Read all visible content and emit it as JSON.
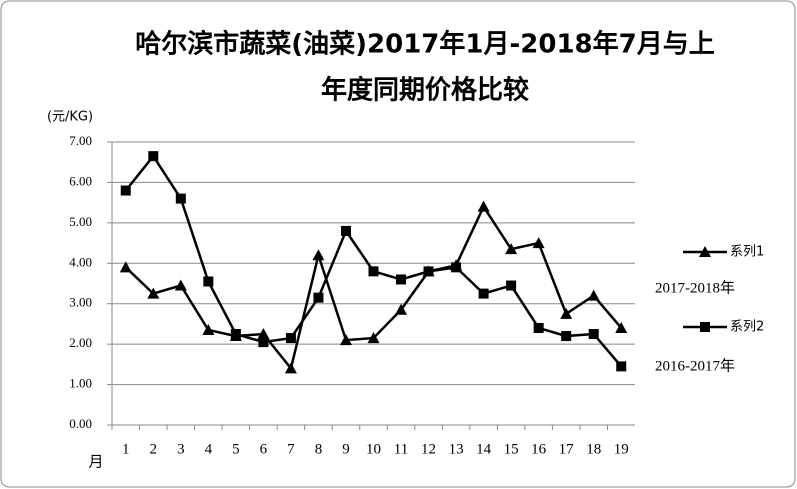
{
  "chart_data": {
    "type": "line",
    "title": [
      "哈尔滨市蔬菜(油菜)2017年1月-2018年7月与上",
      "年度同期价格比较"
    ],
    "y_label": "(元/KG)",
    "x_label": "月",
    "categories": [
      "1",
      "2",
      "3",
      "4",
      "5",
      "6",
      "7",
      "8",
      "9",
      "10",
      "11",
      "12",
      "13",
      "14",
      "15",
      "16",
      "17",
      "18",
      "19"
    ],
    "series": [
      {
        "name": "系列1",
        "color": "#000000",
        "marker": "triangle",
        "values": [
          3.9,
          3.25,
          3.45,
          2.35,
          2.2,
          2.25,
          1.4,
          4.2,
          2.1,
          2.15,
          2.85,
          3.8,
          3.95,
          5.4,
          4.35,
          4.5,
          2.75,
          3.2,
          2.4
        ]
      },
      {
        "name": "系列2",
        "color": "#000000",
        "marker": "square",
        "values": [
          5.8,
          6.65,
          5.6,
          3.55,
          2.25,
          2.05,
          2.15,
          3.15,
          4.8,
          3.8,
          3.6,
          3.8,
          3.9,
          3.25,
          3.45,
          2.4,
          2.2,
          2.25,
          1.45
        ]
      }
    ],
    "annotations": [
      "2017-2018年",
      "2016-2017年"
    ],
    "ylim": [
      0,
      7
    ],
    "yticks": [
      {
        "value": 0,
        "label": "0.00"
      },
      {
        "value": 1,
        "label": "1.00"
      },
      {
        "value": 2,
        "label": "2.00"
      },
      {
        "value": 3,
        "label": "3.00"
      },
      {
        "value": 4,
        "label": "4.00"
      },
      {
        "value": 5,
        "label": "5.00"
      },
      {
        "value": 6,
        "label": "6.00"
      },
      {
        "value": 7,
        "label": "7.00"
      }
    ],
    "grid": true
  }
}
